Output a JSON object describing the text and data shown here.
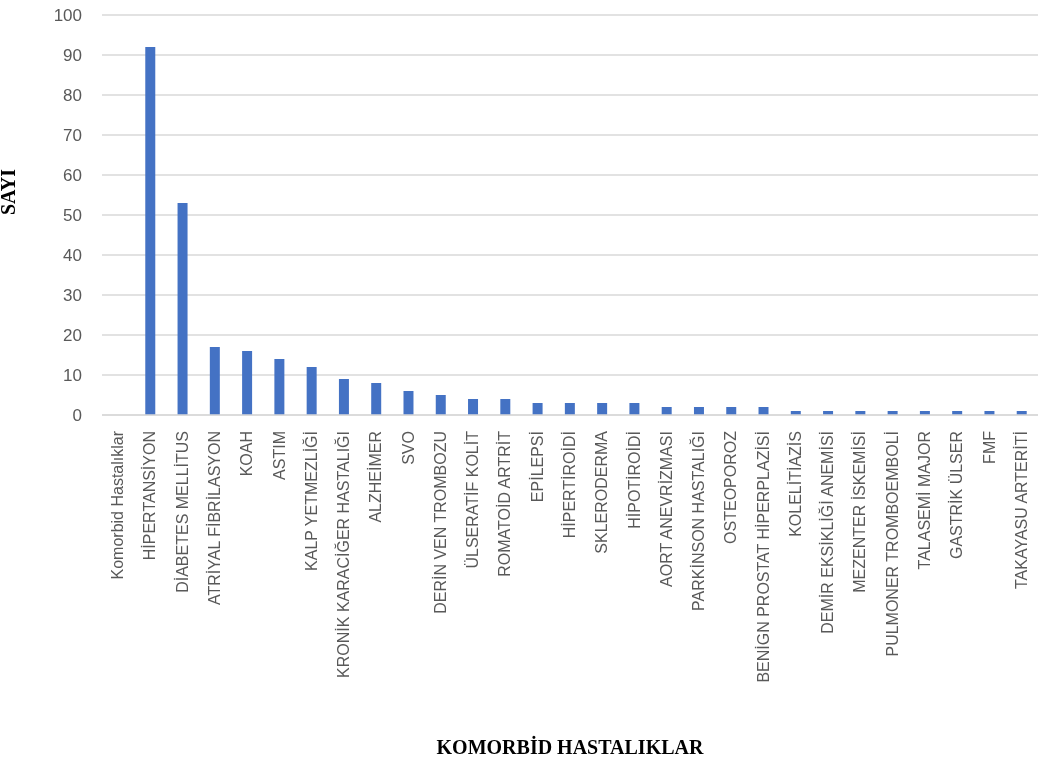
{
  "chart_data": {
    "type": "bar",
    "xlabel": "KOMORBİD HASTALIKLAR",
    "ylabel": "SAYI",
    "categories": [
      "Komorbid Hastalıklar",
      "HİPERTANSİYON",
      "DİABETES MELLİTUS",
      "ATRİYAL FİBRİLASYON",
      "KOAH",
      "ASTIM",
      "KALP YETMEZLİĞİ",
      "KRONİK KARACİĞER HASTALIĞI",
      "ALZHEİMER",
      "SVO",
      "DERİN VEN TROMBOZU",
      "ÜLSERATİF KOLİT",
      "ROMATOİD ARTRİT",
      "EPİLEPSİ",
      "HİPERTİROİDİ",
      "SKLERODERMA",
      "HİPOTİROİDİ",
      "AORT ANEVRİZMASI",
      "PARKİNSON HASTALIĞI",
      "OSTEOPOROZ",
      "BENİGN PROSTAT HİPERPLAZİSİ",
      "KOLELİTİAZİS",
      "DEMİR EKSİKLİĞİ ANEMİSİ",
      "MEZENTER İSKEMİSİ",
      "PULMONER TROMBOEMBOLİ",
      "TALASEMİ MAJOR",
      "GASTRİK ÜLSER",
      "FMF",
      "TAKAYASU ARTERİTİ"
    ],
    "values": [
      null,
      92,
      53,
      17,
      16,
      14,
      12,
      9,
      8,
      6,
      5,
      4,
      4,
      3,
      3,
      3,
      3,
      2,
      2,
      2,
      2,
      1,
      1,
      1,
      1,
      1,
      1,
      1,
      1
    ],
    "color": "#4472c4",
    "ylim": [
      0,
      100
    ],
    "yticks": [
      0,
      10,
      20,
      30,
      40,
      50,
      60,
      70,
      80,
      90,
      100
    ],
    "grid": "y",
    "legend": false
  }
}
